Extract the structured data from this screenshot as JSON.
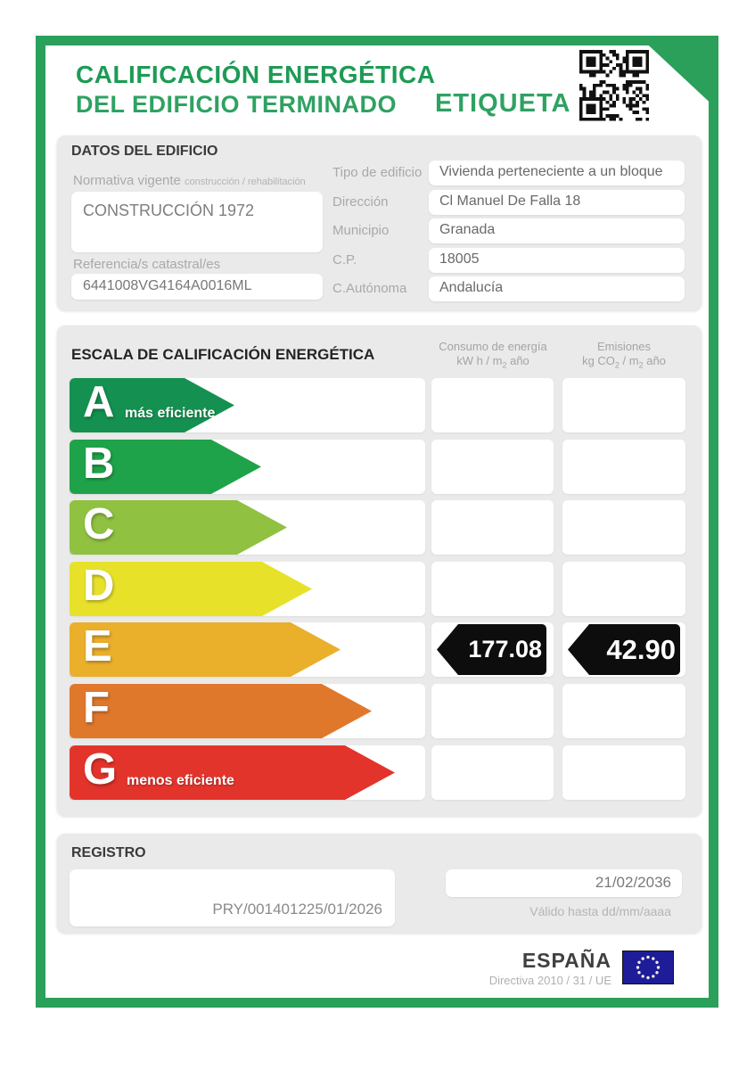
{
  "header": {
    "title_line1": "CALIFICACIÓN ENERGÉTICA",
    "title_line2": "DEL EDIFICIO TERMINADO",
    "etiqueta_label": "ETIQUETA",
    "qr_icon": "qr-code",
    "accent_green": "#1d9b55",
    "frame_green": "#2aa05a"
  },
  "datos": {
    "section_title": "DATOS DEL EDIFICIO",
    "normativa": {
      "label": "Normativa vigente",
      "sublabel": "construcción / rehabilitación",
      "value": "CONSTRUCCIÓN 1972"
    },
    "referencia": {
      "label": "Referencia/s catastral/es",
      "value": "6441008VG4164A0016ML"
    },
    "fields": [
      {
        "label": "Tipo de edificio",
        "value": "Vivienda perteneciente a un bloque"
      },
      {
        "label": "Dirección",
        "value": "Cl Manuel De Falla 18"
      },
      {
        "label": "Municipio",
        "value": "Granada"
      },
      {
        "label": "C.P.",
        "value": "18005"
      },
      {
        "label": "C.Autónoma",
        "value": "Andalucía"
      }
    ]
  },
  "escala": {
    "section_title": "ESCALA DE CALIFICACIÓN ENERGÉTICA",
    "consumo_header": {
      "line1": "Consumo de energía",
      "unit_p1": "kW h / m",
      "unit_sub": "2",
      "unit_p2": " año"
    },
    "emisiones_header": {
      "line1": "Emisiones",
      "unit_p1": "kg CO",
      "unit_sub1": "2",
      "unit_p2": " / m",
      "unit_sub2": "2",
      "unit_p3": " año"
    },
    "ratings": [
      {
        "letter": "A",
        "note": "más eficiente",
        "color": "#149150",
        "arrow_width": 185
      },
      {
        "letter": "B",
        "note": "",
        "color": "#1fa34a",
        "arrow_width": 215
      },
      {
        "letter": "C",
        "note": "",
        "color": "#90c140",
        "arrow_width": 244
      },
      {
        "letter": "D",
        "note": "",
        "color": "#e7e229",
        "arrow_width": 272
      },
      {
        "letter": "E",
        "note": "",
        "color": "#eaaf2b",
        "arrow_width": 304
      },
      {
        "letter": "F",
        "note": "",
        "color": "#e0782c",
        "arrow_width": 339
      },
      {
        "letter": "G",
        "note": "menos eficiente",
        "color": "#e3342c",
        "arrow_width": 365
      }
    ],
    "result": {
      "rated_letter": "E",
      "consumo_value": "177.08",
      "emisiones_value": "42.90",
      "tag_color": "#0d0d0d"
    }
  },
  "registro": {
    "section_title": "REGISTRO",
    "registry_number": "PRY/001401225/01/2026",
    "valid_until_date": "21/02/2036",
    "valid_until_label": "Válido hasta dd/mm/aaaa"
  },
  "footer": {
    "country": "ESPAÑA",
    "directive": "Directiva 2010 / 31 / UE",
    "eu_flag_icon": "eu-flag"
  }
}
